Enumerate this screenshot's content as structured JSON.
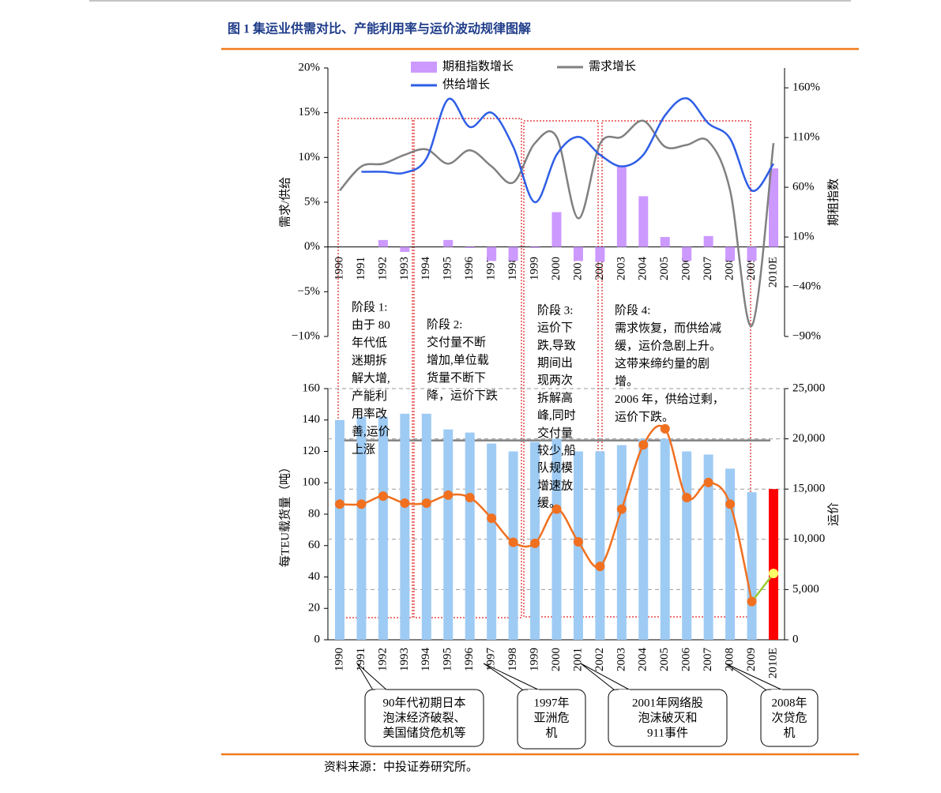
{
  "title": "图 1  集运业供需对比、产能利用率与运价波动规律图解",
  "source": "资料来源：中投证券研究所。",
  "chart_data": [
    {
      "type": "bar_line",
      "ylabel": "需求/供给",
      "y2label": "期租指数",
      "categories": [
        "1990",
        "1991",
        "1992",
        "1993",
        "1994",
        "1995",
        "1996",
        "1997",
        "1998",
        "1999",
        "2000",
        "2001",
        "2002",
        "2003",
        "2004",
        "2005",
        "2006",
        "2007",
        "2008",
        "2009",
        "2010E"
      ],
      "series": [
        {
          "name": "期租指数增长",
          "type": "bar",
          "axis": "y2",
          "color": "#cc99ff",
          "values": [
            0,
            0,
            7,
            -5,
            0,
            7,
            -1,
            -14,
            -14,
            -1,
            35,
            -14,
            -15,
            81,
            51,
            10,
            -14,
            11,
            -14,
            -14,
            79
          ]
        },
        {
          "name": "需求增长",
          "type": "line",
          "color": "#808080",
          "values": [
            6.3,
            9.0,
            9.3,
            10.3,
            10.9,
            9.3,
            10.8,
            9.0,
            7.2,
            11.6,
            12.3,
            3.2,
            11.5,
            12.3,
            14.1,
            11.2,
            11.4,
            11.8,
            6.3,
            -8.8,
            11.6
          ]
        },
        {
          "name": "供给增长",
          "type": "line",
          "color": "#2e5ee6",
          "values": [
            null,
            8.4,
            8.4,
            8.3,
            9.9,
            16.5,
            13.4,
            15.0,
            11.2,
            5.0,
            10.3,
            12.3,
            10.3,
            9.0,
            10.3,
            14.7,
            16.6,
            13.8,
            12.1,
            6.3,
            9.3
          ]
        }
      ],
      "ylim": [
        -10,
        20
      ],
      "yticks": [
        {
          "value": -10,
          "label": "−10%"
        },
        {
          "value": -5,
          "label": "−5%"
        },
        {
          "value": 0,
          "label": "0%"
        },
        {
          "value": 5,
          "label": "5%"
        },
        {
          "value": 10,
          "label": "10%"
        },
        {
          "value": 15,
          "label": "15%"
        },
        {
          "value": 20,
          "label": "20%"
        }
      ],
      "y2lim": [
        -90,
        180
      ],
      "y2ticks": [
        {
          "value": -90,
          "label": "−90%"
        },
        {
          "value": -40,
          "label": "−40%"
        },
        {
          "value": 10,
          "label": "10%"
        },
        {
          "value": 60,
          "label": "60%"
        },
        {
          "value": 110,
          "label": "110%"
        },
        {
          "value": 160,
          "label": "160%"
        }
      ]
    },
    {
      "type": "bar_line",
      "ylabel": "每TEU载货量（吨）",
      "y2label": "运价",
      "categories": [
        "1990",
        "1991",
        "1992",
        "1993",
        "1994",
        "1995",
        "1996",
        "1997",
        "1998",
        "1999",
        "2000",
        "2001",
        "2002",
        "2003",
        "2004",
        "2005",
        "2006",
        "2007",
        "2008",
        "2009",
        "2010E"
      ],
      "series": [
        {
          "type": "bar",
          "color": "#9ecbf4",
          "colors": [
            "#9ecbf4",
            "#9ecbf4",
            "#9ecbf4",
            "#9ecbf4",
            "#9ecbf4",
            "#9ecbf4",
            "#9ecbf4",
            "#9ecbf4",
            "#9ecbf4",
            "#9ecbf4",
            "#9ecbf4",
            "#9ecbf4",
            "#9ecbf4",
            "#9ecbf4",
            "#9ecbf4",
            "#9ecbf4",
            "#9ecbf4",
            "#9ecbf4",
            "#9ecbf4",
            "#9ecbf4",
            "#ff0000"
          ],
          "values": [
            140,
            142,
            142,
            144,
            144,
            134,
            132,
            125,
            120,
            126,
            128,
            120,
            120,
            124,
            128,
            128,
            120,
            118,
            109,
            94,
            96
          ]
        },
        {
          "type": "line",
          "axis": "y2",
          "color": "#f07020",
          "forecast_color": "#99cc33",
          "forecast_marker_color": "#ffff66",
          "values": [
            13500,
            13500,
            14300,
            13600,
            13600,
            14400,
            14150,
            12100,
            9700,
            9600,
            13000,
            9750,
            7300,
            13000,
            19400,
            21000,
            14150,
            15650,
            13500,
            3800,
            6600
          ]
        }
      ],
      "reference_line": 127,
      "reference_color": "#808080",
      "ylim": [
        0,
        160
      ],
      "yticks": [
        0,
        20,
        40,
        60,
        80,
        100,
        120,
        140,
        160
      ],
      "y2lim": [
        0,
        25000
      ],
      "y2ticks": [
        0,
        {
          "value": 5000,
          "label": "5,000"
        },
        {
          "value": 10000,
          "label": "10,000"
        },
        {
          "value": 15000,
          "label": "15,000"
        },
        {
          "value": 20000,
          "label": "20,000"
        },
        {
          "value": 25000,
          "label": "25,000"
        }
      ],
      "grid": true
    }
  ],
  "phases": [
    {
      "lines": [
        "阶段 1:",
        "由于 80",
        "年代低",
        "迷期拆",
        "解大增,",
        "产能利",
        "用率改",
        "善,运价",
        "上涨"
      ]
    },
    {
      "lines": [
        "阶段 2:",
        "交付量不断",
        "增加,单位载",
        "货量不断下",
        "降，运价下跌"
      ]
    },
    {
      "lines": [
        "阶段 3:",
        "运价下",
        "跌,导致",
        "期间出",
        "现两次",
        "拆解高",
        "峰,同时",
        "交付量",
        "较少,船",
        "队规模",
        "增速放",
        "缓。"
      ]
    },
    {
      "lines": [
        "阶段 4:",
        "需求恢复，而供给减",
        "缓，运价急剧上升。",
        "这带来缔约量的剧",
        "增。",
        "2006 年，供给过剩，",
        "运价下跌。"
      ]
    }
  ],
  "callouts": [
    {
      "lines": [
        "90年代初期日本",
        "泡沫经济破裂、",
        "美国储贷危机等"
      ]
    },
    {
      "lines": [
        "1997年",
        "亚洲危",
        "机"
      ]
    },
    {
      "lines": [
        "2001年网络股",
        "泡沫破灭和",
        "911事件"
      ]
    },
    {
      "lines": [
        "2008年",
        "次贷危",
        "机"
      ]
    }
  ]
}
